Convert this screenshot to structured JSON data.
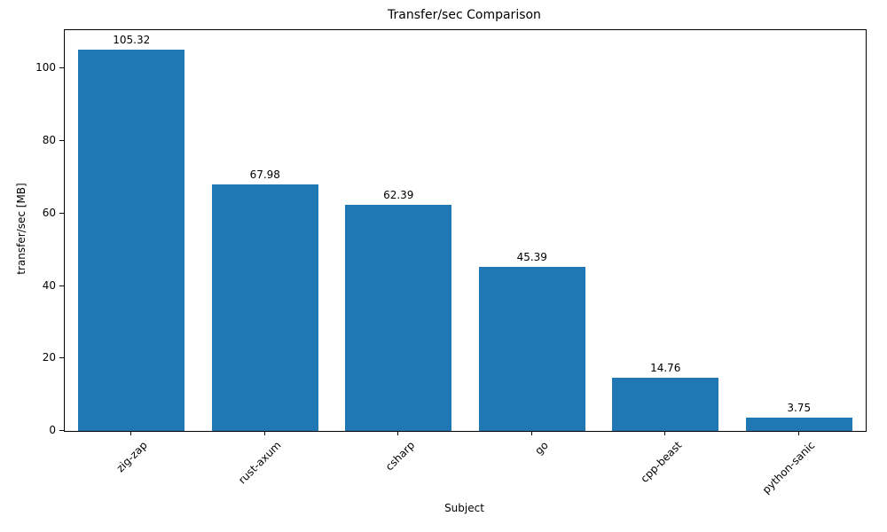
{
  "chart_data": {
    "type": "bar",
    "title": "Transfer/sec Comparison",
    "xlabel": "Subject",
    "ylabel": "transfer/sec [MB]",
    "categories": [
      "zig-zap",
      "rust-axum",
      "csharp",
      "go",
      "cpp-beast",
      "python-sanic"
    ],
    "values": [
      105.32,
      67.98,
      62.39,
      45.39,
      14.76,
      3.75
    ],
    "value_labels": [
      "105.32",
      "67.98",
      "62.39",
      "45.39",
      "14.76",
      "3.75"
    ],
    "bar_color": "#1f77b4",
    "ylim": [
      0,
      110.6
    ],
    "yticks": [
      0,
      20,
      40,
      60,
      80,
      100
    ],
    "grid": false,
    "legend": null,
    "tick_rotation": 45
  }
}
